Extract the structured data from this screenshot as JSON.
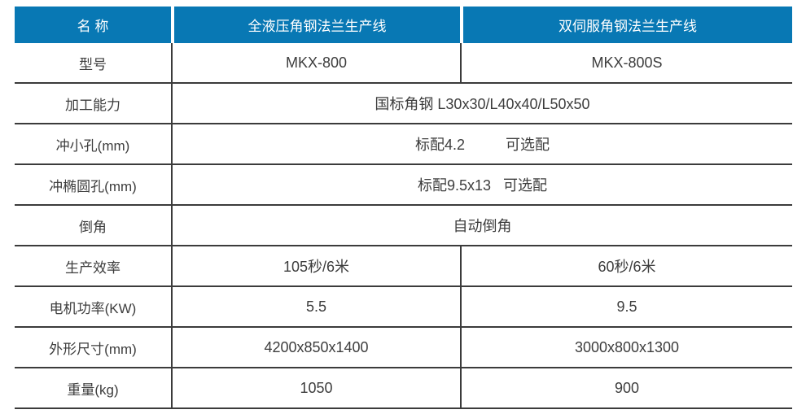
{
  "table": {
    "header": {
      "name": "名 称",
      "line_a": "全液压角钢法兰生产线",
      "line_b": "双伺服角钢法兰生产线"
    },
    "rows": [
      {
        "label": "型号",
        "values": [
          "MKX-800",
          "MKX-800S"
        ]
      },
      {
        "label": "加工能力",
        "values": [
          "国标角钢 L30x30/L40x40/L50x50"
        ]
      },
      {
        "label": "冲小孔(mm)",
        "values": [
          "标配4.2          可选配"
        ]
      },
      {
        "label": "冲椭圆孔(mm)",
        "values": [
          "标配9.5x13   可选配"
        ]
      },
      {
        "label": "倒角",
        "values": [
          "自动倒角"
        ]
      },
      {
        "label": "生产效率",
        "values": [
          "105秒/6米",
          "60秒/6米"
        ]
      },
      {
        "label": "电机功率(KW)",
        "values": [
          "5.5",
          "9.5"
        ]
      },
      {
        "label": "外形尺寸(mm)",
        "values": [
          "4200x850x1400",
          "3000x800x1300"
        ]
      },
      {
        "label": "重量(kg)",
        "values": [
          "1050",
          "900"
        ]
      }
    ],
    "colors": {
      "header_background": "#0878b4",
      "header_text": "#ffffff",
      "body_text": "#3d3d3d",
      "grid_line": "#3b3b3b"
    }
  }
}
